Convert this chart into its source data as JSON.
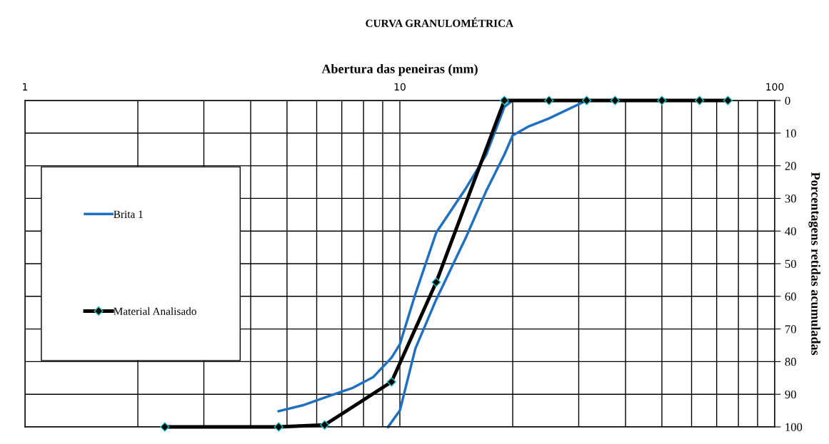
{
  "chart_data": {
    "type": "line",
    "title": "CURVA GRANULOMÉTRICA",
    "xlabel": "Abertura das peneiras (mm)",
    "ylabel": "Porcentagens retidas acumuladas",
    "log": "x",
    "xlim": [
      1,
      100
    ],
    "xticks": [
      1,
      10,
      100
    ],
    "ylim": [
      100,
      0
    ],
    "yticks": [
      0,
      10,
      20,
      30,
      40,
      50,
      60,
      70,
      80,
      90,
      100
    ],
    "grid": true,
    "legend": "left",
    "series": [
      {
        "name": "Brita 1",
        "color": "#1f70c1",
        "marker": "none",
        "x": [
          4.75,
          5.5,
          6.3,
          7.5,
          8.5,
          9.5,
          10,
          11,
          12.5,
          15,
          17,
          19,
          20,
          25
        ],
        "values": [
          95.2,
          93.4,
          91,
          88,
          84.7,
          78.8,
          74.7,
          59.3,
          40.5,
          26.9,
          16.6,
          2,
          0,
          0
        ]
      },
      {
        "color": "#1f70c1",
        "marker": "none",
        "x": [
          9.3,
          10,
          11,
          12.5,
          15,
          17,
          19,
          20,
          22,
          25,
          31.5
        ],
        "values": [
          100,
          95,
          76,
          61,
          42,
          27.7,
          16.6,
          10.7,
          8,
          5.5,
          0
        ]
      },
      {
        "name": "Material Analisado",
        "color": "#000000",
        "marker": "diamond",
        "x": [
          2.36,
          4.75,
          6.3,
          9.5,
          12.5,
          19,
          25,
          31.5,
          37.5,
          50,
          63,
          75
        ],
        "values": [
          100,
          100,
          99.4,
          86.2,
          55.7,
          0,
          0,
          0,
          0,
          0,
          0,
          0
        ]
      }
    ]
  }
}
